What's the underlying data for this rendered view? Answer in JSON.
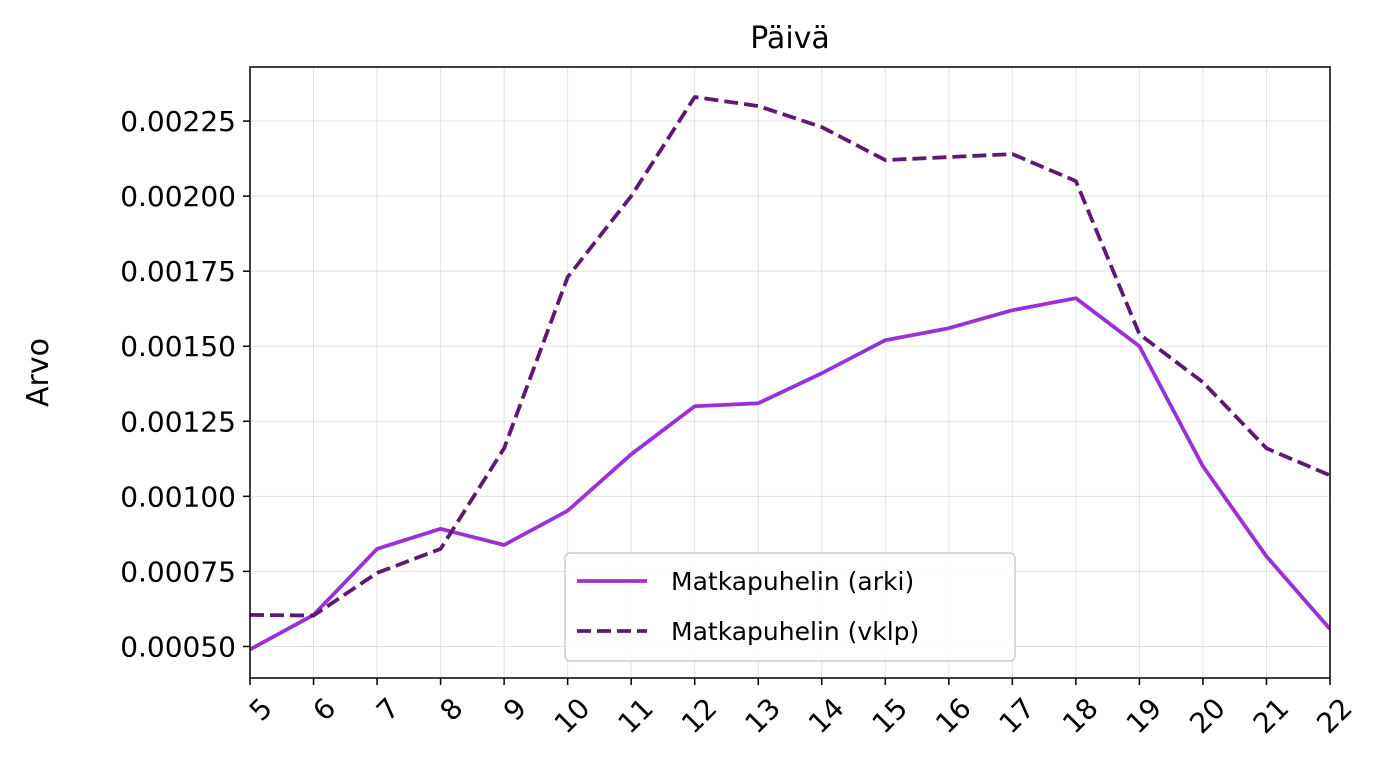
{
  "chart_data": {
    "type": "line",
    "title": "Päivä",
    "xlabel": "",
    "ylabel": "Arvo",
    "x": [
      5,
      6,
      7,
      8,
      9,
      10,
      11,
      12,
      13,
      14,
      15,
      16,
      17,
      18,
      19,
      20,
      21,
      22
    ],
    "xlim": [
      5,
      22
    ],
    "ylim": [
      0.000395,
      0.00243
    ],
    "yticks": [
      0.0005,
      0.00075,
      0.001,
      0.00125,
      0.0015,
      0.00175,
      0.002,
      0.00225
    ],
    "ytick_labels": [
      "0.00050",
      "0.00075",
      "0.00100",
      "0.00125",
      "0.00150",
      "0.00175",
      "0.00200",
      "0.00225"
    ],
    "xtick_labels": [
      "5",
      "6",
      "7",
      "8",
      "9",
      "10",
      "11",
      "12",
      "13",
      "14",
      "15",
      "16",
      "17",
      "18",
      "19",
      "20",
      "21",
      "22"
    ],
    "grid": true,
    "legend_position": "lower-center",
    "series": [
      {
        "name": "Matkapuhelin (arki)",
        "style": "solid",
        "color": "#9b30d9",
        "values": [
          0.00049,
          0.000605,
          0.000825,
          0.000892,
          0.000838,
          0.000952,
          0.00114,
          0.0013,
          0.00131,
          0.00141,
          0.00152,
          0.00156,
          0.00162,
          0.00166,
          0.0015,
          0.0011,
          0.0008,
          0.000558
        ]
      },
      {
        "name": "Matkapuhelin (vklp)",
        "style": "dashed",
        "color": "#5b1a73",
        "values": [
          0.000605,
          0.000603,
          0.000745,
          0.000825,
          0.00116,
          0.00173,
          0.002,
          0.00233,
          0.0023,
          0.00223,
          0.00212,
          0.00213,
          0.00214,
          0.00205,
          0.00154,
          0.00138,
          0.00116,
          0.00107
        ]
      }
    ]
  }
}
